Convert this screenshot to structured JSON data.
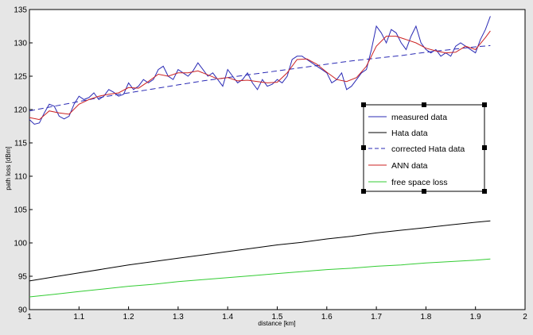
{
  "chart_data": {
    "type": "line",
    "xlabel": "distance [km]",
    "ylabel": "path loss [dBm]",
    "xlim": [
      1,
      2
    ],
    "ylim": [
      90,
      135
    ],
    "x_ticks": [
      "1",
      "1.1",
      "1.2",
      "1.3",
      "1.4",
      "1.5",
      "1.6",
      "1.7",
      "1.8",
      "1.9",
      "2"
    ],
    "y_ticks": [
      "90",
      "95",
      "100",
      "105",
      "110",
      "115",
      "120",
      "125",
      "130",
      "135"
    ],
    "grid": false,
    "legend_position": "center-right",
    "series": [
      {
        "name": "measured data",
        "color": "#2b2bb5",
        "style": "solid",
        "x": [
          1.0,
          1.01,
          1.02,
          1.03,
          1.04,
          1.05,
          1.06,
          1.07,
          1.08,
          1.09,
          1.1,
          1.11,
          1.12,
          1.13,
          1.14,
          1.15,
          1.16,
          1.17,
          1.18,
          1.19,
          1.2,
          1.21,
          1.22,
          1.23,
          1.24,
          1.25,
          1.26,
          1.27,
          1.28,
          1.29,
          1.3,
          1.31,
          1.32,
          1.33,
          1.34,
          1.35,
          1.36,
          1.37,
          1.38,
          1.39,
          1.4,
          1.41,
          1.42,
          1.43,
          1.44,
          1.45,
          1.46,
          1.47,
          1.48,
          1.49,
          1.5,
          1.51,
          1.52,
          1.53,
          1.54,
          1.55,
          1.56,
          1.57,
          1.58,
          1.59,
          1.6,
          1.61,
          1.62,
          1.63,
          1.64,
          1.65,
          1.66,
          1.67,
          1.68,
          1.69,
          1.7,
          1.71,
          1.72,
          1.73,
          1.74,
          1.75,
          1.76,
          1.77,
          1.78,
          1.79,
          1.8,
          1.81,
          1.82,
          1.83,
          1.84,
          1.85,
          1.86,
          1.87,
          1.88,
          1.89,
          1.9,
          1.91,
          1.92,
          1.93
        ],
        "y": [
          118.5,
          117.8,
          118.0,
          119.5,
          120.8,
          120.5,
          119.0,
          118.6,
          119.0,
          120.8,
          122.0,
          121.5,
          121.8,
          122.5,
          121.5,
          122.0,
          123.0,
          122.6,
          122.0,
          122.3,
          124.0,
          123.0,
          123.5,
          124.5,
          124.0,
          124.5,
          126.0,
          126.5,
          125.0,
          124.5,
          126.0,
          125.5,
          125.0,
          125.8,
          127.0,
          126.0,
          125.0,
          125.5,
          124.5,
          123.5,
          126.0,
          125.0,
          124.0,
          124.5,
          125.5,
          124.0,
          123.0,
          124.5,
          123.5,
          123.8,
          124.5,
          124.0,
          125.0,
          127.5,
          128.0,
          128.0,
          127.5,
          127.0,
          126.5,
          126.0,
          125.5,
          124.0,
          124.5,
          125.5,
          123.0,
          123.5,
          124.5,
          125.5,
          126.0,
          129.0,
          132.5,
          131.5,
          130.0,
          132.0,
          131.5,
          130.0,
          129.0,
          131.0,
          132.5,
          130.0,
          129.0,
          128.5,
          129.0,
          128.0,
          128.5,
          128.0,
          129.5,
          130.0,
          129.5,
          129.0,
          128.5,
          130.5,
          132.0,
          134.0
        ]
      },
      {
        "name": "Hata data",
        "color": "#000000",
        "style": "solid",
        "x": [
          1.0,
          1.05,
          1.1,
          1.15,
          1.2,
          1.25,
          1.3,
          1.35,
          1.4,
          1.45,
          1.5,
          1.55,
          1.6,
          1.65,
          1.7,
          1.75,
          1.8,
          1.85,
          1.9,
          1.93
        ],
        "y": [
          94.3,
          94.9,
          95.5,
          96.1,
          96.7,
          97.2,
          97.7,
          98.2,
          98.7,
          99.2,
          99.7,
          100.1,
          100.6,
          101.0,
          101.5,
          101.9,
          102.3,
          102.7,
          103.1,
          103.3
        ]
      },
      {
        "name": "corrected Hata data",
        "color": "#2b2bb5",
        "style": "dashed",
        "x": [
          1.0,
          1.05,
          1.1,
          1.15,
          1.2,
          1.25,
          1.3,
          1.35,
          1.4,
          1.45,
          1.5,
          1.55,
          1.6,
          1.65,
          1.7,
          1.75,
          1.8,
          1.85,
          1.9,
          1.93
        ],
        "y": [
          119.8,
          120.5,
          121.2,
          121.9,
          122.5,
          123.1,
          123.7,
          124.3,
          124.8,
          125.3,
          125.8,
          126.3,
          126.8,
          127.3,
          127.7,
          128.1,
          128.6,
          129.0,
          129.4,
          129.6
        ]
      },
      {
        "name": "ANN data",
        "color": "#cc2222",
        "style": "solid",
        "x": [
          1.0,
          1.02,
          1.04,
          1.06,
          1.08,
          1.1,
          1.12,
          1.14,
          1.16,
          1.18,
          1.2,
          1.22,
          1.24,
          1.26,
          1.28,
          1.3,
          1.32,
          1.34,
          1.36,
          1.38,
          1.4,
          1.42,
          1.44,
          1.46,
          1.48,
          1.5,
          1.52,
          1.54,
          1.56,
          1.58,
          1.6,
          1.62,
          1.64,
          1.66,
          1.68,
          1.7,
          1.72,
          1.74,
          1.76,
          1.78,
          1.8,
          1.82,
          1.84,
          1.86,
          1.88,
          1.9,
          1.92,
          1.93
        ],
        "y": [
          118.8,
          118.5,
          119.8,
          119.5,
          119.3,
          120.8,
          121.5,
          122.0,
          122.3,
          122.5,
          123.3,
          123.2,
          124.2,
          125.3,
          125.0,
          125.5,
          125.5,
          125.8,
          125.2,
          124.6,
          124.8,
          124.3,
          124.4,
          124.2,
          124.0,
          124.1,
          125.5,
          127.5,
          127.6,
          126.8,
          125.6,
          124.5,
          124.2,
          124.8,
          126.5,
          129.5,
          131.0,
          131.0,
          130.5,
          130.0,
          129.2,
          128.8,
          128.5,
          128.6,
          129.5,
          129.0,
          130.8,
          131.8
        ]
      },
      {
        "name": "free space loss",
        "color": "#33cc33",
        "style": "solid",
        "x": [
          1.0,
          1.05,
          1.1,
          1.15,
          1.2,
          1.25,
          1.3,
          1.35,
          1.4,
          1.45,
          1.5,
          1.55,
          1.6,
          1.65,
          1.7,
          1.75,
          1.8,
          1.85,
          1.9,
          1.93
        ],
        "y": [
          91.9,
          92.3,
          92.7,
          93.1,
          93.5,
          93.8,
          94.2,
          94.5,
          94.8,
          95.1,
          95.4,
          95.7,
          96.0,
          96.2,
          96.5,
          96.7,
          97.0,
          97.2,
          97.4,
          97.6
        ]
      }
    ]
  }
}
